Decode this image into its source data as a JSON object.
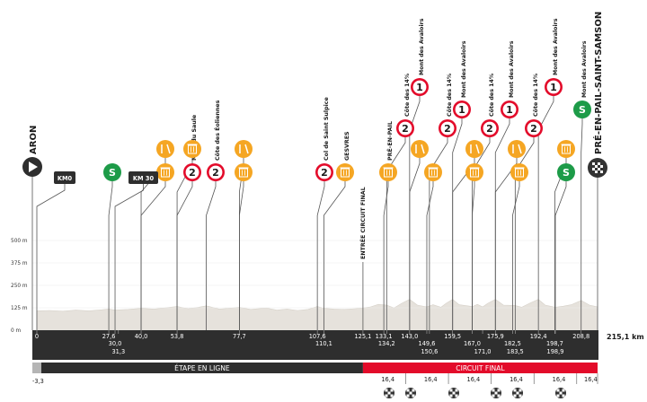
{
  "start_name": "ARON",
  "finish_name": "PRÉ-EN-PAIL-SAINT-SAMSON",
  "total_distance": "215,1 km",
  "altitude_labels": [
    "500 m",
    "375 m",
    "250 m",
    "125 m",
    "0 m"
  ],
  "km_badges": [
    {
      "label": "KM0",
      "km": 0
    },
    {
      "label": "KM 30",
      "km": 30.0
    }
  ],
  "markers": [
    {
      "km": 0,
      "label": "0",
      "row": 1
    },
    {
      "km": 27.6,
      "label": "27,6",
      "row": 1
    },
    {
      "km": 30.0,
      "label": "30,0",
      "row": 2
    },
    {
      "km": 31.3,
      "label": "31,3",
      "row": 3
    },
    {
      "km": 40.0,
      "label": "40,0",
      "row": 1
    },
    {
      "km": 53.8,
      "label": "53,8",
      "row": 1
    },
    {
      "km": 77.7,
      "label": "77,7",
      "row": 1
    },
    {
      "km": 107.6,
      "label": "107,6",
      "row": 1
    },
    {
      "km": 110.1,
      "label": "110,1",
      "row": 2
    },
    {
      "km": 125.1,
      "label": "125,1",
      "row": 1
    },
    {
      "km": 133.1,
      "label": "133,1",
      "row": 1
    },
    {
      "km": 134.2,
      "label": "134,2",
      "row": 2
    },
    {
      "km": 143.0,
      "label": "143,0",
      "row": 1
    },
    {
      "km": 149.6,
      "label": "149,6",
      "row": 2
    },
    {
      "km": 150.6,
      "label": "150,6",
      "row": 3
    },
    {
      "km": 159.5,
      "label": "159,5",
      "row": 1
    },
    {
      "km": 167.0,
      "label": "167,0",
      "row": 2
    },
    {
      "km": 171.0,
      "label": "171,0",
      "row": 3
    },
    {
      "km": 175.9,
      "label": "175,9",
      "row": 1
    },
    {
      "km": 182.5,
      "label": "182,5",
      "row": 2
    },
    {
      "km": 183.5,
      "label": "183,5",
      "row": 3
    },
    {
      "km": 192.4,
      "label": "192,4",
      "row": 1
    },
    {
      "km": 198.7,
      "label": "198,7",
      "row": 2
    },
    {
      "km": 198.9,
      "label": "198,9",
      "row": 3
    },
    {
      "km": 208.8,
      "label": "208,8",
      "row": 1
    }
  ],
  "points": [
    {
      "km": 27.6,
      "type": "sprint",
      "cat": "S"
    },
    {
      "km": 40.0,
      "type": "feed"
    },
    {
      "km": 40.0,
      "type": "toilet"
    },
    {
      "km": 53.8,
      "type": "climb",
      "cat": "2",
      "name": "Mont du Saule"
    },
    {
      "km": 53.8,
      "type": "toilet"
    },
    {
      "km": 65.0,
      "type": "climb",
      "cat": "2",
      "name": "Côte des Éoliennes"
    },
    {
      "km": 77.7,
      "type": "feed"
    },
    {
      "km": 77.7,
      "type": "toilet"
    },
    {
      "km": 107.6,
      "type": "climb",
      "cat": "2",
      "name": "Col de Saint Sulpice"
    },
    {
      "km": 110.1,
      "type": "toilet",
      "name": "GESVRES"
    },
    {
      "km": 125.1,
      "type": "label",
      "name": "ENTRÉE CIRCUIT FINAL"
    },
    {
      "km": 133.1,
      "type": "toilet",
      "name": "PRÉ-EN-PAIL"
    },
    {
      "km": 134.2,
      "type": "climb",
      "cat": "2",
      "name": "Côte des 14%"
    },
    {
      "km": 143.0,
      "type": "climb",
      "cat": "1",
      "name": "Mont des Avaloirs"
    },
    {
      "km": 143.0,
      "type": "feed"
    },
    {
      "km": 149.6,
      "type": "toilet"
    },
    {
      "km": 150.6,
      "type": "climb",
      "cat": "2",
      "name": "Côte des 14%"
    },
    {
      "km": 159.5,
      "type": "climb",
      "cat": "1",
      "name": "Mont des Avaloirs"
    },
    {
      "km": 159.5,
      "type": "feed"
    },
    {
      "km": 167.0,
      "type": "toilet"
    },
    {
      "km": 167.0,
      "type": "climb",
      "cat": "2",
      "name": "Côte des 14%"
    },
    {
      "km": 175.9,
      "type": "climb",
      "cat": "1",
      "name": "Mont des Avaloirs"
    },
    {
      "km": 175.9,
      "type": "feed"
    },
    {
      "km": 182.5,
      "type": "toilet"
    },
    {
      "km": 183.5,
      "type": "climb",
      "cat": "2",
      "name": "Côte des 14%"
    },
    {
      "km": 192.4,
      "type": "climb",
      "cat": "1",
      "name": "Mont des Avaloirs"
    },
    {
      "km": 198.7,
      "type": "toilet"
    },
    {
      "km": 198.9,
      "type": "sprint",
      "cat": "S"
    },
    {
      "km": 208.8,
      "type": "sprint",
      "cat": "S",
      "name": "Mont des Avaloirs"
    }
  ],
  "segments": [
    {
      "label": "ÉTAPE EN LIGNE",
      "from_km": 0,
      "to_km": 125.1,
      "color": "#2e2e2e"
    },
    {
      "label": "CIRCUIT FINAL",
      "from_km": 125.1,
      "to_km": 215.1,
      "color": "#e30b2a"
    }
  ],
  "neutral_start": "-3,3",
  "lap_distances": [
    "16,4",
    "16,4",
    "16,4",
    "16,4",
    "16,4",
    "16,4"
  ],
  "lap_km": [
    125.1,
    141.5,
    157.9,
    174.3,
    190.7,
    207.1
  ],
  "profile": [
    [
      0,
      108
    ],
    [
      5,
      110
    ],
    [
      10,
      106
    ],
    [
      15,
      112
    ],
    [
      20,
      108
    ],
    [
      25,
      114
    ],
    [
      27.6,
      118
    ],
    [
      30,
      112
    ],
    [
      35,
      116
    ],
    [
      40,
      122
    ],
    [
      45,
      118
    ],
    [
      50,
      126
    ],
    [
      53.8,
      132
    ],
    [
      58,
      120
    ],
    [
      62,
      128
    ],
    [
      65,
      136
    ],
    [
      70,
      118
    ],
    [
      75,
      124
    ],
    [
      77.7,
      128
    ],
    [
      82,
      116
    ],
    [
      88,
      124
    ],
    [
      92,
      112
    ],
    [
      96,
      118
    ],
    [
      100,
      110
    ],
    [
      104,
      116
    ],
    [
      107.6,
      132
    ],
    [
      110.1,
      122
    ],
    [
      114,
      118
    ],
    [
      118,
      116
    ],
    [
      122,
      120
    ],
    [
      125.1,
      124
    ],
    [
      128,
      130
    ],
    [
      131,
      144
    ],
    [
      134.2,
      140
    ],
    [
      137,
      124
    ],
    [
      140,
      150
    ],
    [
      143,
      172
    ],
    [
      146,
      140
    ],
    [
      149.6,
      130
    ],
    [
      152,
      142
    ],
    [
      155,
      128
    ],
    [
      157,
      150
    ],
    [
      159.5,
      172
    ],
    [
      162,
      142
    ],
    [
      167,
      132
    ],
    [
      169,
      144
    ],
    [
      171,
      130
    ],
    [
      173,
      150
    ],
    [
      175.9,
      172
    ],
    [
      179,
      140
    ],
    [
      183.5,
      138
    ],
    [
      186,
      128
    ],
    [
      189,
      150
    ],
    [
      192.4,
      172
    ],
    [
      195,
      140
    ],
    [
      198.9,
      128
    ],
    [
      202,
      134
    ],
    [
      205,
      142
    ],
    [
      208.8,
      166
    ],
    [
      212,
      140
    ],
    [
      215.1,
      130
    ]
  ],
  "colors": {
    "feed": "#f5a623",
    "climb": "#e30b2a",
    "sprint": "#1d9b48",
    "dark": "#2e2e2e",
    "profile_fill": "#e6e2dc",
    "circuit": "#e30b2a"
  }
}
